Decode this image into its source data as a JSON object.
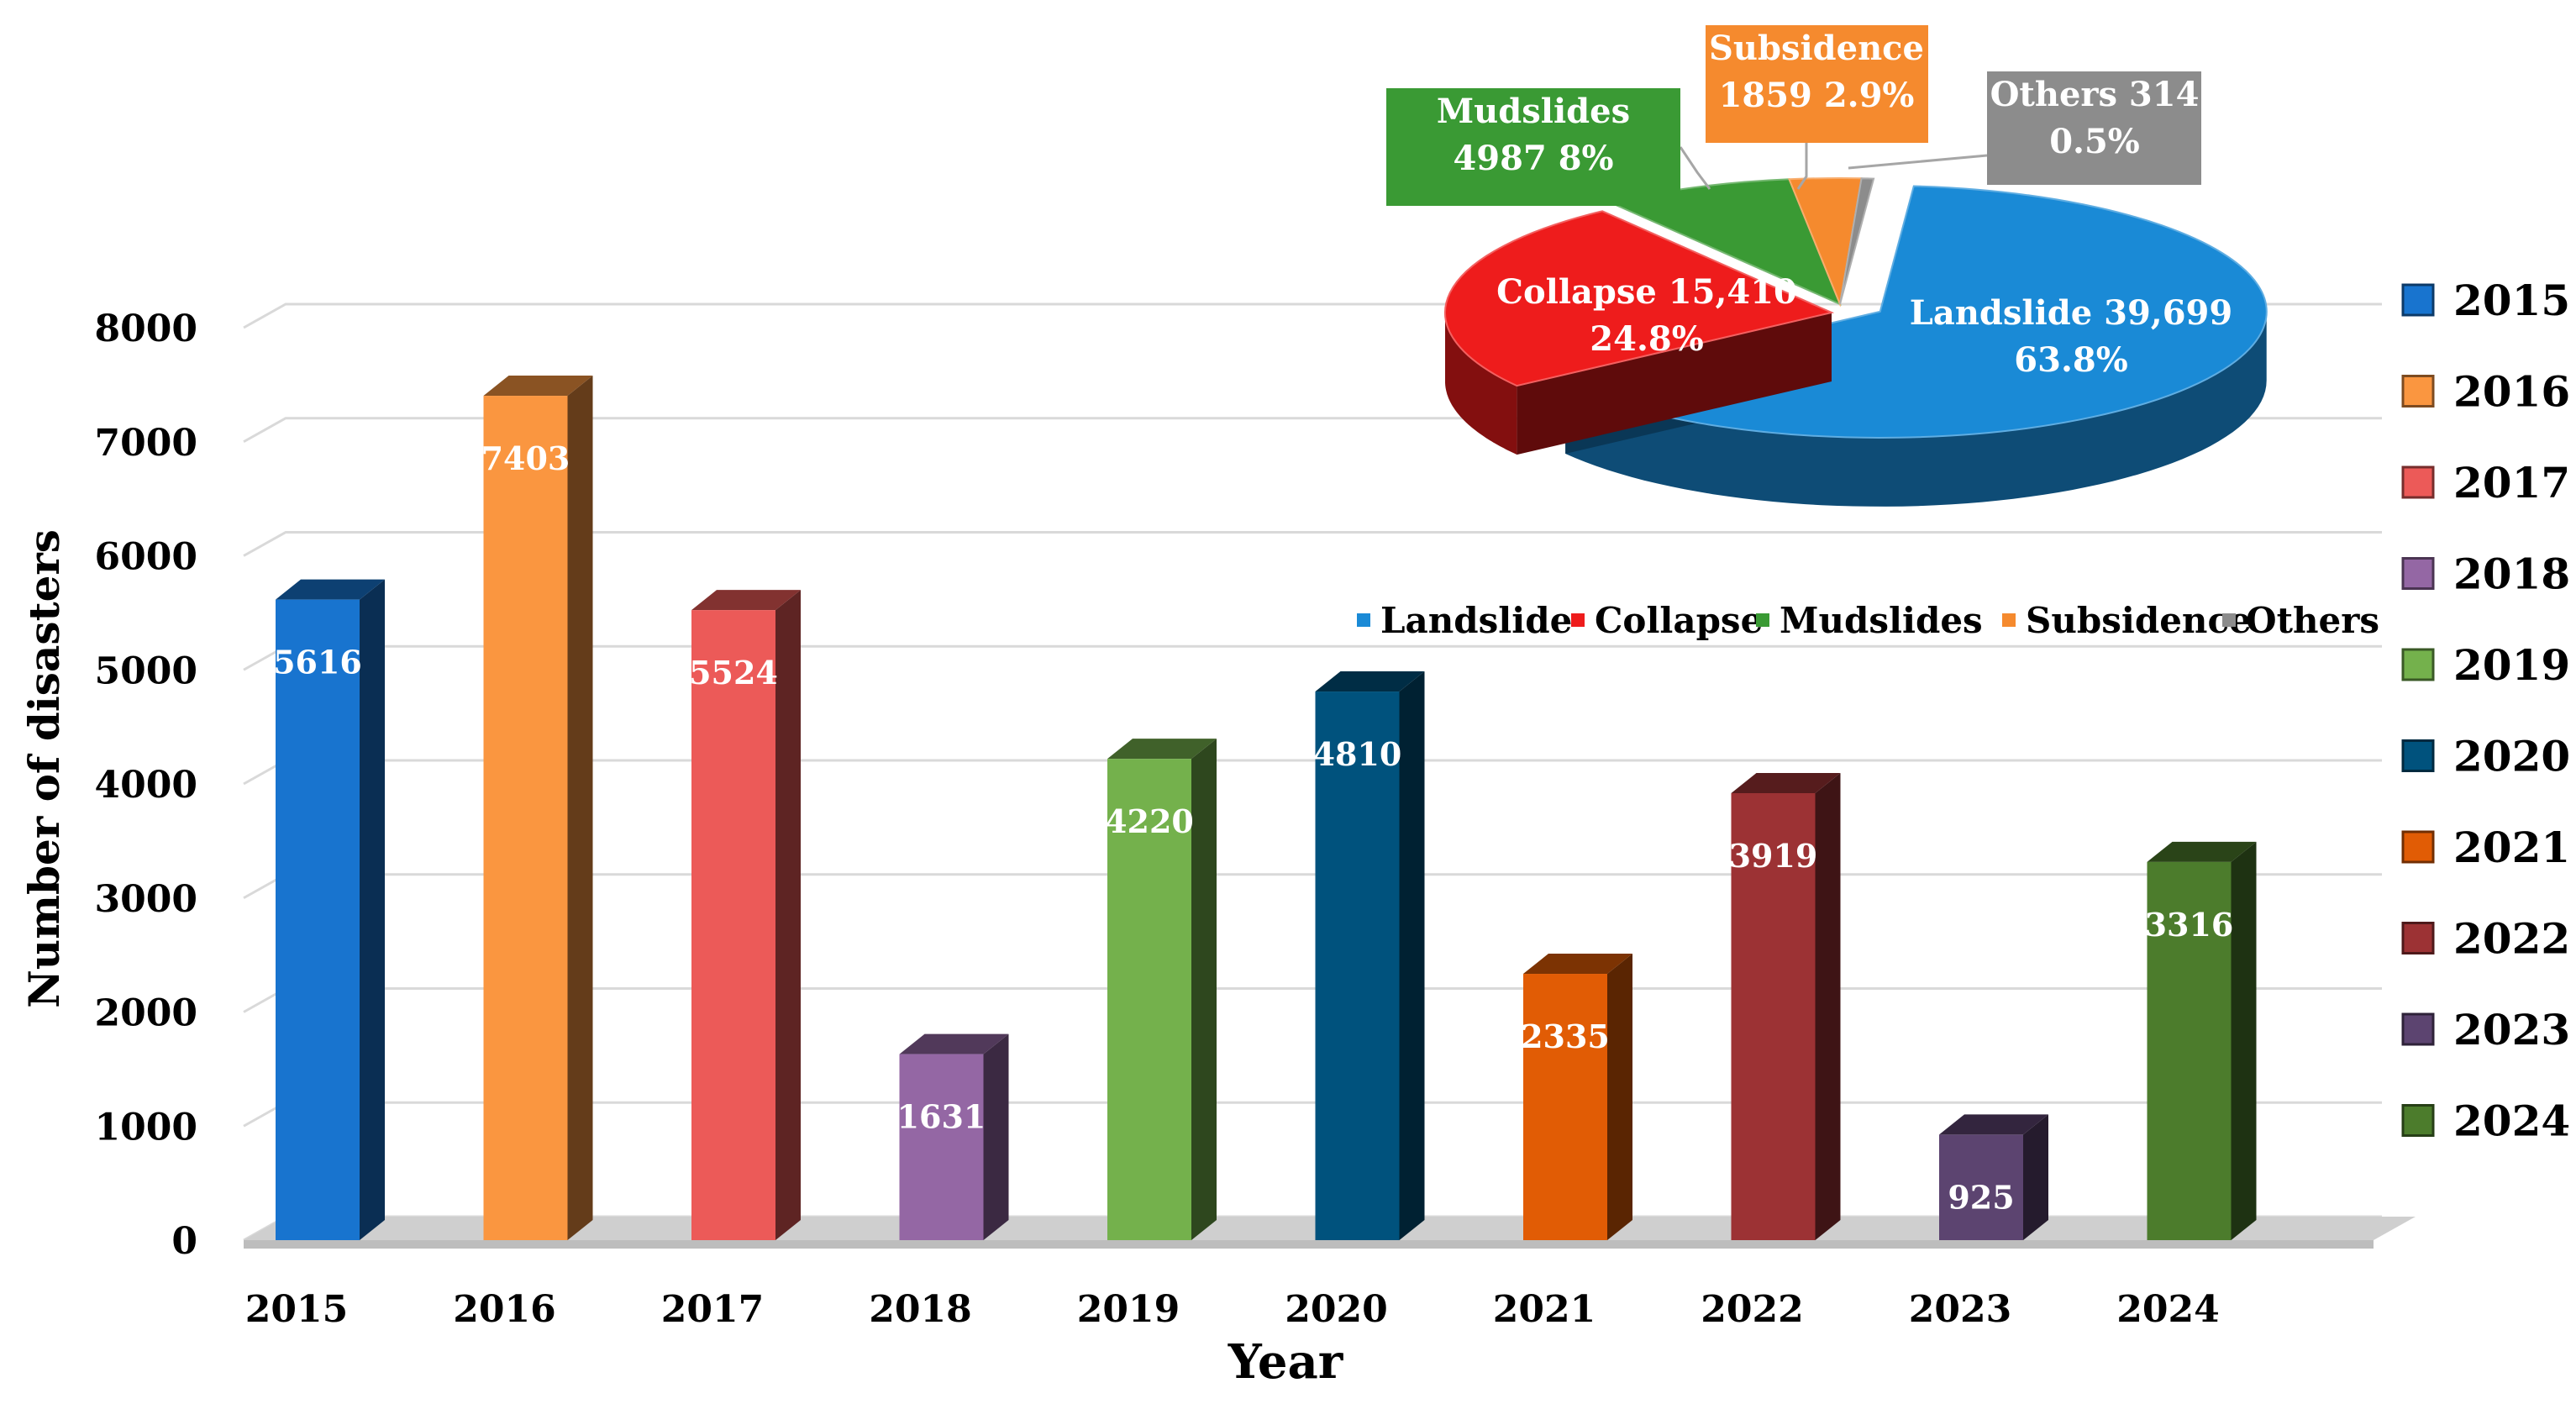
{
  "chart_data": [
    {
      "type": "bar",
      "title": "",
      "xlabel": "Year",
      "ylabel": "Number of disasters",
      "ylim": [
        0,
        8000
      ],
      "yticks": [
        0,
        1000,
        2000,
        3000,
        4000,
        5000,
        6000,
        7000,
        8000
      ],
      "categories": [
        "2015",
        "2016",
        "2017",
        "2018",
        "2019",
        "2020",
        "2021",
        "2022",
        "2023",
        "2024"
      ],
      "values": [
        5616,
        7403,
        5524,
        1631,
        4220,
        4810,
        2335,
        3919,
        925,
        3316
      ],
      "value_labels": [
        "5616",
        "7403",
        "5524",
        "1631",
        "4220",
        "4810",
        "2335",
        "3919",
        "925",
        "3316"
      ],
      "colors": [
        "#1874cf",
        "#fa9640",
        "#ec5a58",
        "#9467a4",
        "#74b14c",
        "#00527d",
        "#e15c05",
        "#9c3234",
        "#5c4470",
        "#4c7c2c"
      ],
      "legend": {
        "placement": "right",
        "entries": [
          "2015",
          "2016",
          "2017",
          "2018",
          "2019",
          "2020",
          "2021",
          "2022",
          "2023",
          "2024"
        ]
      }
    },
    {
      "type": "pie",
      "title": "",
      "slices": [
        {
          "name": "Landslide",
          "value": 39699,
          "percent": 63.8,
          "label_line1": "Landslide 39,699",
          "label_line2": "63.8%",
          "color": "#1a8ad6"
        },
        {
          "name": "Collapse",
          "value": 15410,
          "percent": 24.8,
          "label_line1": "Collapse 15,410",
          "label_line2": "24.8%",
          "color": "#ee1c1c"
        },
        {
          "name": "Mudslides",
          "value": 4987,
          "percent": 8,
          "label_line1": "Mudslides",
          "label_line2": "4987 8%",
          "color": "#3a9a34"
        },
        {
          "name": "Subsidence",
          "value": 1859,
          "percent": 2.9,
          "label_line1": "Subsidence",
          "label_line2": "1859 2.9%",
          "color": "#f58a2e"
        },
        {
          "name": "Others",
          "value": 314,
          "percent": 0.5,
          "label_line1": "Others 314",
          "label_line2": "0.5%",
          "color": "#8c8c8c"
        }
      ],
      "legend": {
        "placement": "bottom",
        "entries": [
          "Landslide",
          "Collapse",
          "Mudslides",
          "Subsidence",
          "Others"
        ]
      }
    }
  ]
}
